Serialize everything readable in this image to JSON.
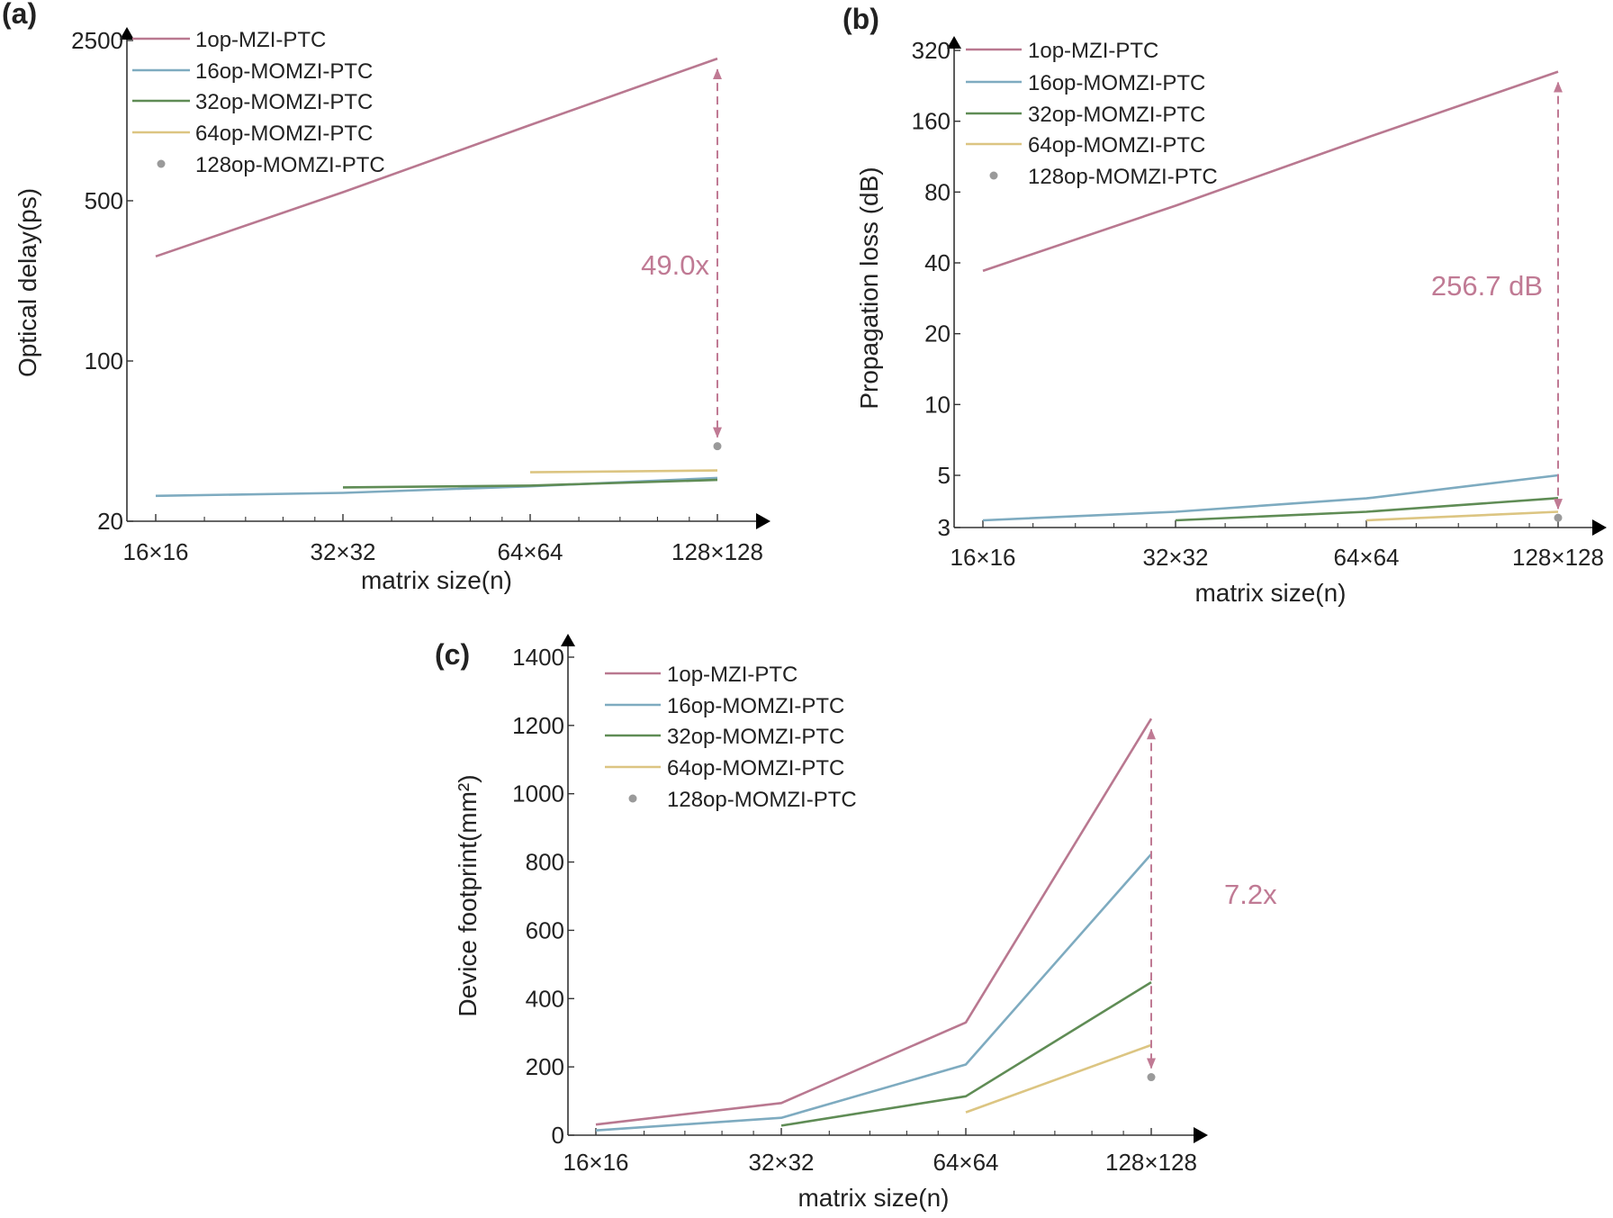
{
  "colors": {
    "1op-MZI-PTC": "#b97890",
    "16op-MOMZI-PTC": "#7eabc0",
    "32op-MOMZI-PTC": "#5f8c55",
    "64op-MOMZI-PTC": "#dcc582",
    "128op-MOMZI-PTC": "#9a9a9a",
    "annotation": "#c07a94",
    "axis": "#333333"
  },
  "chart_data": [
    {
      "panel_label": "(a)",
      "type": "line",
      "categories": [
        "16×16",
        "32×32",
        "64×64",
        "128×128"
      ],
      "xlabel": "matrix size(n)",
      "ylabel": "Optical delay(ps)",
      "yscale": "log",
      "ylim": [
        20,
        2500
      ],
      "yticks": [
        20,
        100,
        500,
        2500
      ],
      "ytick_labels": [
        "20",
        "100",
        "500",
        "2500"
      ],
      "legend_position": "top-left",
      "series": [
        {
          "name": "1op-MZI-PTC",
          "values": [
            286,
            545,
            1070,
            2085
          ]
        },
        {
          "name": "16op-MOMZI-PTC",
          "values": [
            25.8,
            26.6,
            28.4,
            30.9
          ]
        },
        {
          "name": "32op-MOMZI-PTC",
          "values": [
            null,
            28.1,
            28.6,
            30.3
          ]
        },
        {
          "name": "64op-MOMZI-PTC",
          "values": [
            null,
            null,
            32.7,
            33.3
          ]
        },
        {
          "name": "128op-MOMZI-PTC",
          "values": [
            null,
            null,
            null,
            42.5
          ],
          "marker": "dot"
        }
      ],
      "annotation": {
        "text": "49.0x",
        "from": 2085,
        "to": 42.5,
        "category": "128×128"
      }
    },
    {
      "panel_label": "(b)",
      "type": "line",
      "categories": [
        "16×16",
        "32×32",
        "64×64",
        "128×128"
      ],
      "xlabel": "matrix size(n)",
      "ylabel": "Propagation loss (dB)",
      "yscale": "log",
      "ylim": [
        3,
        320
      ],
      "yticks": [
        3,
        5,
        10,
        20,
        40,
        80,
        160,
        320
      ],
      "ytick_labels": [
        "3",
        "5",
        "10",
        "20",
        "40",
        "80",
        "160",
        "320"
      ],
      "legend_position": "top-left",
      "series": [
        {
          "name": "1op-MZI-PTC",
          "values": [
            37,
            70,
            136,
            260
          ]
        },
        {
          "name": "16op-MOMZI-PTC",
          "values": [
            3.22,
            3.5,
            3.99,
            5.0
          ]
        },
        {
          "name": "32op-MOMZI-PTC",
          "values": [
            null,
            3.22,
            3.5,
            4.0
          ]
        },
        {
          "name": "64op-MOMZI-PTC",
          "values": [
            null,
            null,
            3.22,
            3.5
          ]
        },
        {
          "name": "128op-MOMZI-PTC",
          "values": [
            null,
            null,
            null,
            3.3
          ],
          "marker": "dot"
        }
      ],
      "annotation": {
        "text": "256.7 dB",
        "from": 260,
        "to": 3.3,
        "category": "128×128"
      }
    },
    {
      "panel_label": "(c)",
      "type": "line",
      "categories": [
        "16×16",
        "32×32",
        "64×64",
        "128×128"
      ],
      "xlabel": "matrix size(n)",
      "ylabel": "Device footprint(mm²)",
      "yscale": "linear",
      "ylim": [
        0,
        1400
      ],
      "yticks": [
        0,
        200,
        400,
        600,
        800,
        1000,
        1200,
        1400
      ],
      "ytick_labels": [
        "0",
        "200",
        "400",
        "600",
        "800",
        "1000",
        "1200",
        "1400"
      ],
      "legend_position": "top-left",
      "series": [
        {
          "name": "1op-MZI-PTC",
          "values": [
            31,
            94,
            330,
            1220
          ]
        },
        {
          "name": "16op-MOMZI-PTC",
          "values": [
            14,
            51,
            207,
            823
          ]
        },
        {
          "name": "32op-MOMZI-PTC",
          "values": [
            null,
            28,
            114,
            448
          ]
        },
        {
          "name": "64op-MOMZI-PTC",
          "values": [
            null,
            null,
            67,
            264
          ]
        },
        {
          "name": "128op-MOMZI-PTC",
          "values": [
            null,
            null,
            null,
            170
          ],
          "marker": "dot"
        }
      ],
      "annotation": {
        "text": "7.2x",
        "from": 1220,
        "to": 170,
        "category": "128×128"
      }
    }
  ]
}
